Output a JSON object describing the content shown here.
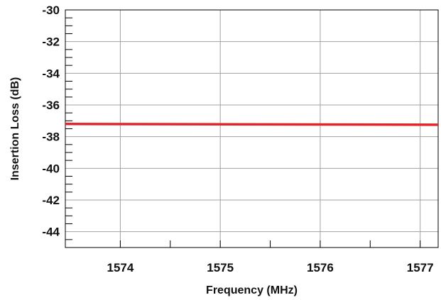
{
  "chart_data": {
    "type": "line",
    "title": "",
    "xlabel": "Frequency (MHz)",
    "ylabel": "Insertion Loss (dB)",
    "xlim": [
      1573.45,
      1577.18
    ],
    "ylim": [
      -45,
      -30
    ],
    "x_ticks": [
      1574,
      1575,
      1576,
      1577
    ],
    "x_tick_labels": [
      "1574",
      "1575",
      "1576",
      "1577"
    ],
    "x_minor_ticks": [
      1574.5,
      1575.5,
      1576.5
    ],
    "y_ticks": [
      -30,
      -32,
      -34,
      -36,
      -38,
      -40,
      -42,
      -44
    ],
    "y_tick_labels": [
      "-30",
      "-32",
      "-34",
      "-36",
      "-38",
      "-40",
      "-42",
      "-44"
    ],
    "grid": true,
    "series": [
      {
        "color": "#e0262a",
        "x": [
          1573.45,
          1577.18
        ],
        "y": [
          -37.2,
          -37.25
        ]
      }
    ]
  }
}
